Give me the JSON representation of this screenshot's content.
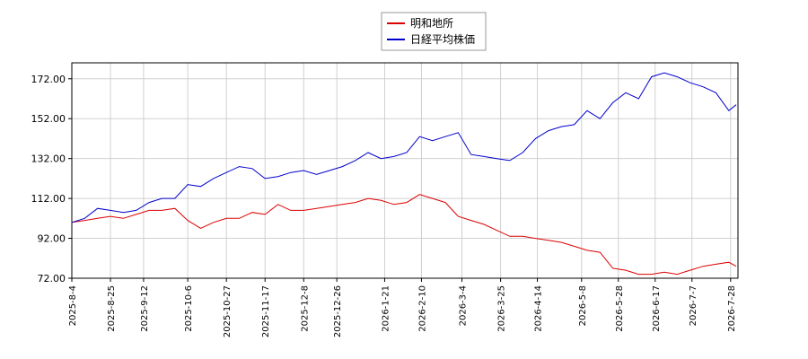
{
  "chart_data": {
    "type": "line",
    "x": [
      "2025-8-4",
      "2025-8-11",
      "2025-8-18",
      "2025-8-25",
      "2025-9-1",
      "2025-9-8",
      "2025-9-15",
      "2025-9-22",
      "2025-9-29",
      "2025-10-6",
      "2025-10-13",
      "2025-10-20",
      "2025-10-27",
      "2025-11-3",
      "2025-11-10",
      "2025-11-17",
      "2025-11-24",
      "2025-12-1",
      "2025-12-8",
      "2025-12-15",
      "2025-12-22",
      "2025-12-29",
      "2026-1-5",
      "2026-1-12",
      "2026-1-19",
      "2026-1-26",
      "2026-2-2",
      "2026-2-9",
      "2026-2-16",
      "2026-2-23",
      "2026-3-2",
      "2026-3-9",
      "2026-3-16",
      "2026-3-23",
      "2026-3-30",
      "2026-4-6",
      "2026-4-13",
      "2026-4-20",
      "2026-4-27",
      "2026-5-4",
      "2026-5-11",
      "2026-5-18",
      "2026-5-25",
      "2026-6-1",
      "2026-6-8",
      "2026-6-15",
      "2026-6-22",
      "2026-6-29",
      "2026-7-6",
      "2026-7-13",
      "2026-7-20",
      "2026-7-27",
      "2026-7-31"
    ],
    "series": [
      {
        "name": "明和地所",
        "color": "#dd0000",
        "values": [
          100,
          101,
          102,
          103,
          102,
          104,
          106,
          106,
          107,
          101,
          97,
          100,
          102,
          102,
          105,
          104,
          109,
          106,
          106,
          107,
          108,
          109,
          110,
          112,
          111,
          109,
          110,
          114,
          112,
          110,
          103,
          101,
          99,
          96,
          93,
          93,
          92,
          91,
          90,
          88,
          86,
          85,
          77,
          76,
          74,
          74,
          75,
          74,
          76,
          78,
          79,
          80,
          78
        ]
      },
      {
        "name": "日経平均株価",
        "color": "#0000cc",
        "values": [
          100,
          102,
          107,
          106,
          105,
          106,
          110,
          112,
          112,
          119,
          118,
          122,
          125,
          128,
          127,
          122,
          123,
          125,
          126,
          124,
          126,
          128,
          131,
          135,
          132,
          133,
          135,
          143,
          141,
          143,
          145,
          134,
          133,
          132,
          131,
          135,
          142,
          146,
          148,
          149,
          156,
          152,
          160,
          165,
          162,
          173,
          175,
          173,
          170,
          168,
          165,
          156,
          159
        ]
      }
    ],
    "xlim": [
      "2025-8-4",
      "2026-8-1"
    ],
    "xticks": [
      "2025-8-4",
      "2025-8-25",
      "2025-9-12",
      "2025-10-6",
      "2025-10-27",
      "2025-11-17",
      "2025-12-8",
      "2025-12-26",
      "2026-1-21",
      "2026-2-10",
      "2026-3-4",
      "2026-3-25",
      "2026-4-14",
      "2026-5-8",
      "2026-5-28",
      "2026-6-17",
      "2026-7-7",
      "2026-7-28"
    ],
    "ylim": [
      72,
      180
    ],
    "yticks": [
      {
        "value": 72,
        "label": "72.00"
      },
      {
        "value": 92,
        "label": "92.00"
      },
      {
        "value": 112,
        "label": "112.00"
      },
      {
        "value": 132,
        "label": "132.00"
      },
      {
        "value": 152,
        "label": "152.00"
      },
      {
        "value": 172,
        "label": "172.00"
      }
    ],
    "grid": true,
    "legend": "top"
  }
}
